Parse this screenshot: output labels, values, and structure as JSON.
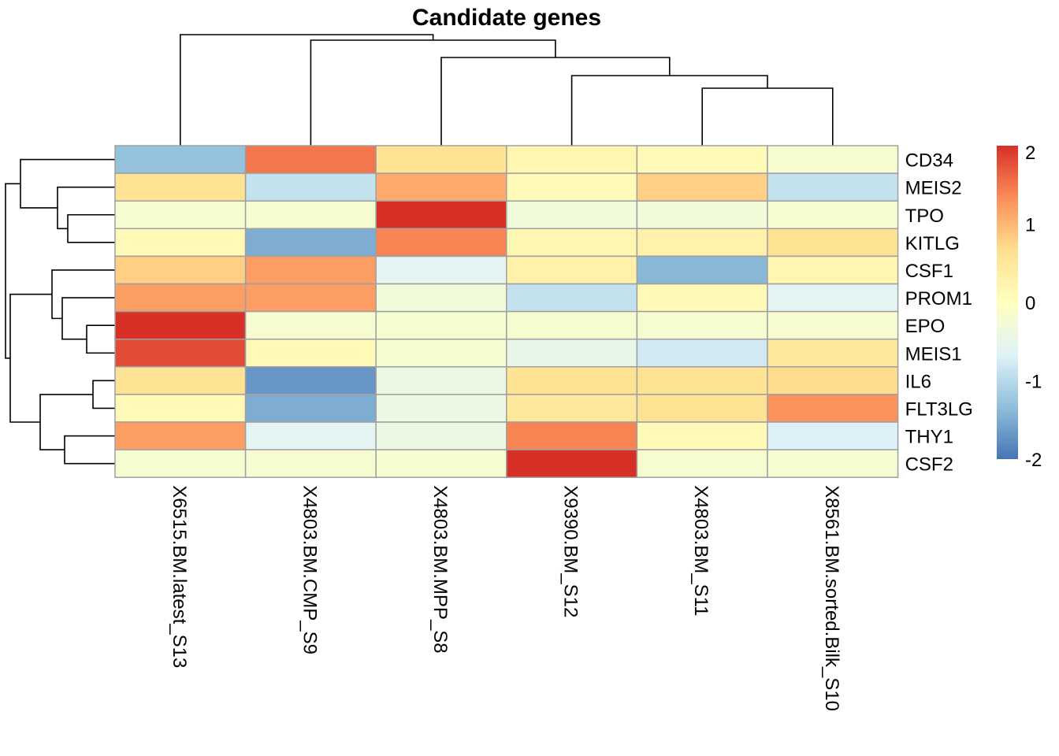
{
  "chart_data": {
    "type": "heatmap",
    "title": "Candidate genes",
    "rows": [
      "CD34",
      "MEIS2",
      "TPO",
      "KITLG",
      "CSF1",
      "PROM1",
      "EPO",
      "MEIS1",
      "IL6",
      "FLT3LG",
      "THY1",
      "CSF2"
    ],
    "columns": [
      "X6515.BM.latest_S13",
      "X4803.BM.CMP_S9",
      "X4803.BM.MPP_S8",
      "X9390.BM_S12",
      "X4803.BM_S11",
      "X8561.BM.sorted.Bilk_S10"
    ],
    "values": [
      [
        -1.3,
        1.5,
        0.6,
        0.2,
        0.1,
        -0.2
      ],
      [
        0.6,
        -0.9,
        1.1,
        0.1,
        0.8,
        -0.9
      ],
      [
        -0.2,
        -0.2,
        2.0,
        -0.3,
        -0.3,
        -0.2
      ],
      [
        0.1,
        -1.5,
        1.4,
        0.2,
        0.3,
        0.6
      ],
      [
        0.8,
        1.2,
        -0.6,
        0.3,
        -1.4,
        0.2
      ],
      [
        1.2,
        1.2,
        -0.3,
        -0.9,
        0.1,
        -0.6
      ],
      [
        2.0,
        -0.2,
        -0.2,
        -0.2,
        -0.2,
        -0.2
      ],
      [
        1.8,
        0.1,
        -0.2,
        -0.5,
        -0.8,
        0.5
      ],
      [
        0.6,
        -1.7,
        -0.4,
        0.6,
        0.6,
        0.7
      ],
      [
        0.1,
        -1.5,
        -0.4,
        0.5,
        0.6,
        1.3
      ],
      [
        1.2,
        -0.6,
        -0.4,
        1.4,
        0.1,
        -0.7
      ],
      [
        -0.2,
        -0.2,
        -0.2,
        2.0,
        -0.2,
        -0.2
      ]
    ],
    "color_scale": {
      "min": -2,
      "max": 2,
      "stops": [
        "#4575B4",
        "#91BFDB",
        "#E0F3F8",
        "#FFFFBF",
        "#FEE090",
        "#FC8D59",
        "#D73027"
      ]
    },
    "legend_ticks": [
      "2",
      "1",
      "0",
      "-1",
      "-2"
    ],
    "legend_values": [
      2,
      1,
      0,
      -1,
      -2
    ],
    "legend_placement": "right",
    "row_dendrogram_order": "((CD34,(MEIS2,(TPO,KITLG))),(((CSF1,(PROM1,(EPO,MEIS1))),((IL6,FLT3LG),(THY1,CSF2)))))",
    "column_dendrogram_order": "(X6515.BM.latest_S13,(X4803.BM.CMP_S9,(X4803.BM.MPP_S8,(X9390.BM_S12,(X4803.BM_S11,X8561.BM.sorted.Bilk_S10)))))"
  }
}
